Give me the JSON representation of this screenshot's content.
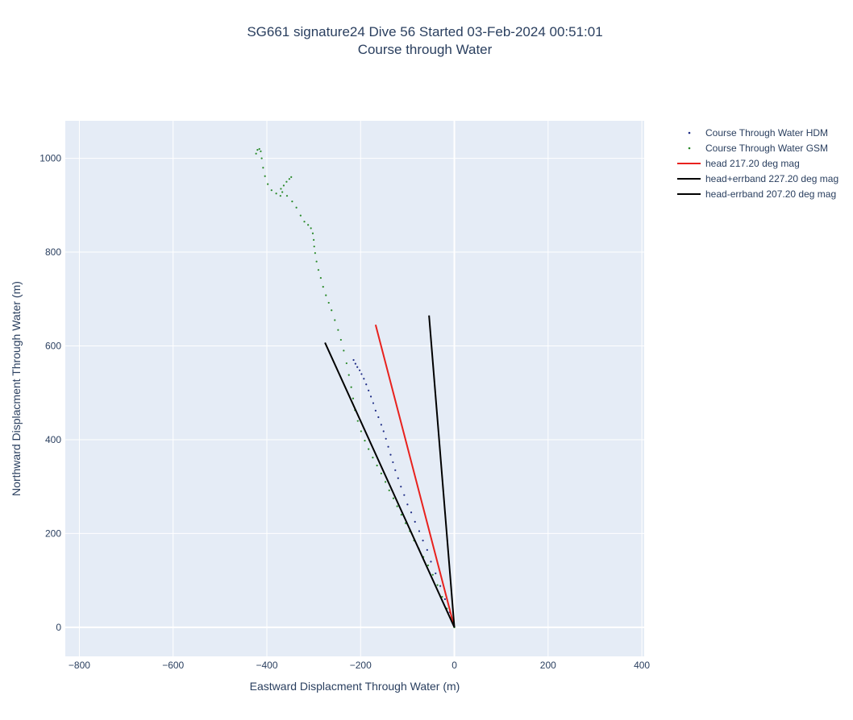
{
  "chart_data": {
    "type": "scatter",
    "title": "SG661 signature24 Dive 56 Started 03-Feb-2024 00:51:01",
    "subtitle": "Course through Water",
    "xlabel": "Eastward Displacment Through Water (m)",
    "ylabel": "Northward Displacment Through Water (m)",
    "xlim": [
      -830,
      405
    ],
    "ylim": [
      -62,
      1080
    ],
    "x_ticks": [
      -800,
      -600,
      -400,
      -200,
      0,
      200,
      400
    ],
    "y_ticks": [
      0,
      200,
      400,
      600,
      800,
      1000
    ],
    "grid": true,
    "legend_position": "right",
    "plot_background": "#e5ecf6",
    "series": [
      {
        "name": "Course Through Water HDM",
        "kind": "markers",
        "color": "#1f2d86",
        "x": [
          0,
          -5,
          -10,
          -20,
          -30,
          -40,
          -50,
          -58,
          -67,
          -75,
          -84,
          -92,
          -100,
          -107,
          -114,
          -120,
          -126,
          -131,
          -136,
          -141,
          -146,
          -151,
          -156,
          -162,
          -168,
          -173,
          -178,
          -183,
          -188,
          -193,
          -198,
          -202,
          -207,
          -211,
          -215
        ],
        "y": [
          0,
          15,
          32,
          60,
          88,
          115,
          140,
          165,
          185,
          205,
          225,
          245,
          262,
          282,
          300,
          318,
          335,
          352,
          368,
          385,
          402,
          418,
          432,
          448,
          462,
          478,
          492,
          505,
          518,
          530,
          540,
          548,
          555,
          562,
          570
        ]
      },
      {
        "name": "Course Through Water GSM",
        "kind": "markers",
        "color": "#2a8a2a",
        "x": [
          0,
          -8,
          -16,
          -26,
          -36,
          -46,
          -56,
          -66,
          -76,
          -86,
          -95,
          -104,
          -113,
          -122,
          -130,
          -139,
          -147,
          -156,
          -165,
          -174,
          -183,
          -191,
          -199,
          -206,
          -212,
          -216,
          -220,
          -225,
          -230,
          -236,
          -242,
          -248,
          -255,
          -262,
          -268,
          -274,
          -280,
          -285,
          -290,
          -294,
          -297,
          -299,
          -300,
          -302,
          -306,
          -312,
          -320,
          -328,
          -337,
          -346,
          -357,
          -367,
          -371,
          -380,
          -390,
          -398,
          -404,
          -408,
          -411,
          -413,
          -416,
          -420,
          -423,
          -370,
          -364,
          -358,
          -352,
          -348
        ],
        "y": [
          0,
          20,
          40,
          65,
          90,
          112,
          132,
          150,
          168,
          185,
          205,
          222,
          240,
          258,
          275,
          292,
          310,
          328,
          345,
          362,
          380,
          398,
          418,
          440,
          463,
          488,
          512,
          538,
          563,
          590,
          613,
          634,
          655,
          676,
          692,
          708,
          726,
          745,
          762,
          780,
          798,
          812,
          826,
          840,
          851,
          858,
          865,
          878,
          895,
          908,
          920,
          928,
          920,
          925,
          932,
          945,
          962,
          980,
          1000,
          1015,
          1020,
          1018,
          1010,
          935,
          942,
          950,
          956,
          960
        ]
      },
      {
        "name": "head 217.20 deg mag",
        "kind": "line",
        "color": "#e8211d",
        "x": [
          0,
          -168
        ],
        "y": [
          0,
          645
        ]
      },
      {
        "name": "head+errband 227.20 deg mag",
        "kind": "line",
        "color": "#000000",
        "x": [
          0,
          -276
        ],
        "y": [
          0,
          607
        ]
      },
      {
        "name": "head-errband 207.20 deg mag",
        "kind": "line",
        "color": "#000000",
        "x": [
          0,
          -54
        ],
        "y": [
          0,
          665
        ]
      }
    ]
  }
}
